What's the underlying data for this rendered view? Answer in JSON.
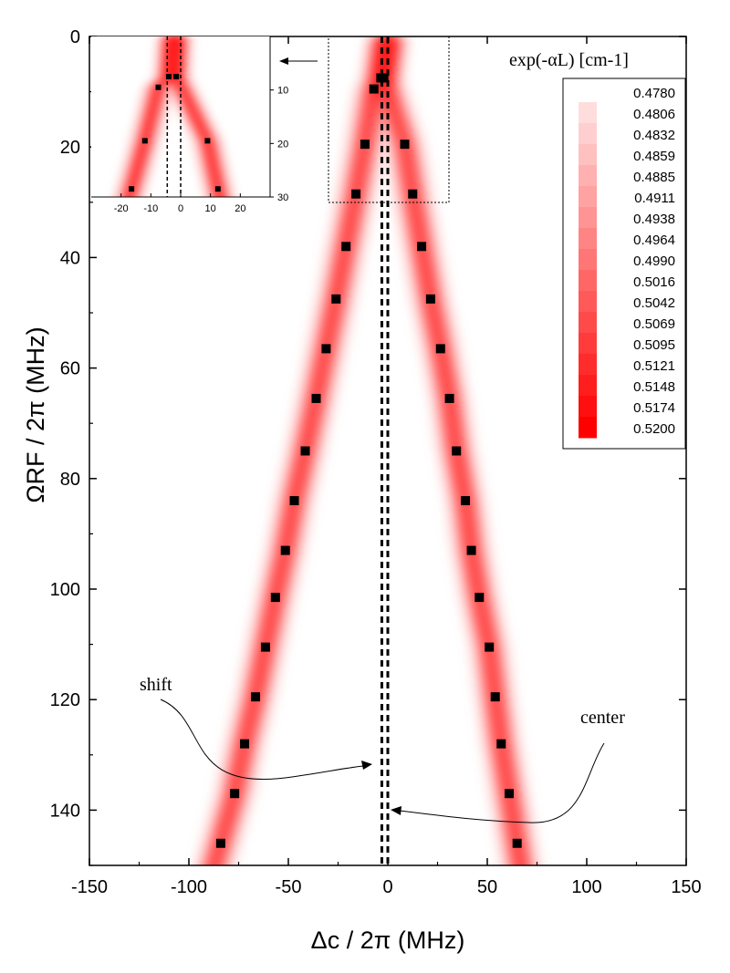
{
  "chart_data": {
    "type": "scatter",
    "xlabel": "Δc / 2π (MHz)",
    "ylabel": "ΩRF / 2π (MHz)",
    "xlim": [
      -150,
      150
    ],
    "ylim": [
      0,
      150
    ],
    "y_inverted": true,
    "x_ticks": [
      "-150",
      "-100",
      "-50",
      "0",
      "50",
      "100",
      "150"
    ],
    "y_ticks": [
      "0",
      "20",
      "40",
      "60",
      "80",
      "100",
      "120",
      "140"
    ],
    "colormap": {
      "title": "exp(-αL) [cm-1]",
      "low_color": "#ffffff",
      "high_color": "#ff0000",
      "labels": [
        "0.4780",
        "0.4806",
        "0.4832",
        "0.4859",
        "0.4885",
        "0.4911",
        "0.4938",
        "0.4964",
        "0.4990",
        "0.5016",
        "0.5042",
        "0.5069",
        "0.5095",
        "0.5121",
        "0.5148",
        "0.5174",
        "0.5200"
      ]
    },
    "series": [
      {
        "marker": "square",
        "color": "#000000",
        "x": [
          -3.5,
          -7,
          -11.5,
          -16,
          -21,
          -26,
          -31,
          -36,
          -41.5,
          -47,
          -51.5,
          -56.5,
          -61.5,
          -66.5,
          -72,
          -77,
          -84
        ],
        "y": [
          7.5,
          9.5,
          19.5,
          28.5,
          38,
          47.5,
          56.5,
          65.5,
          75,
          84,
          93,
          101.5,
          110.5,
          119.5,
          128,
          137,
          146
        ]
      },
      {
        "marker": "square",
        "color": "#000000",
        "x": [
          -2,
          8.5,
          12.5,
          17,
          21.5,
          26.5,
          31,
          34.5,
          39,
          42,
          46,
          51,
          54,
          57,
          61,
          65
        ],
        "y": [
          7.5,
          19.5,
          28.5,
          38,
          47.5,
          56.5,
          65.5,
          75,
          84,
          93,
          101.5,
          110.5,
          119.5,
          128,
          137,
          146
        ]
      }
    ],
    "vertical_lines": [
      {
        "x": -3,
        "style": "dashed",
        "role": "shift"
      },
      {
        "x": 0,
        "style": "dashed",
        "role": "center"
      }
    ],
    "annotations": [
      {
        "text": "shift",
        "points_to_x": -3,
        "points_to_y": 131
      },
      {
        "text": "center",
        "points_to_x": 0,
        "points_to_y": 140
      }
    ],
    "inset": {
      "xlim": [
        -30,
        30
      ],
      "ylim": [
        0,
        30
      ],
      "x_ticks": [
        "-20",
        "-10",
        "0",
        "10",
        "20"
      ],
      "y_ticks": [
        "10",
        "20",
        "30"
      ],
      "series_left": {
        "x": [
          -4,
          -7.5,
          -12,
          -16.5
        ],
        "y": [
          7.5,
          9.5,
          19.5,
          28.5
        ]
      },
      "series_right": {
        "x": [
          -1.5,
          9,
          12.5
        ],
        "y": [
          7.5,
          19.5,
          28.5
        ]
      },
      "vertical_lines": [
        -4.5,
        0
      ]
    }
  }
}
